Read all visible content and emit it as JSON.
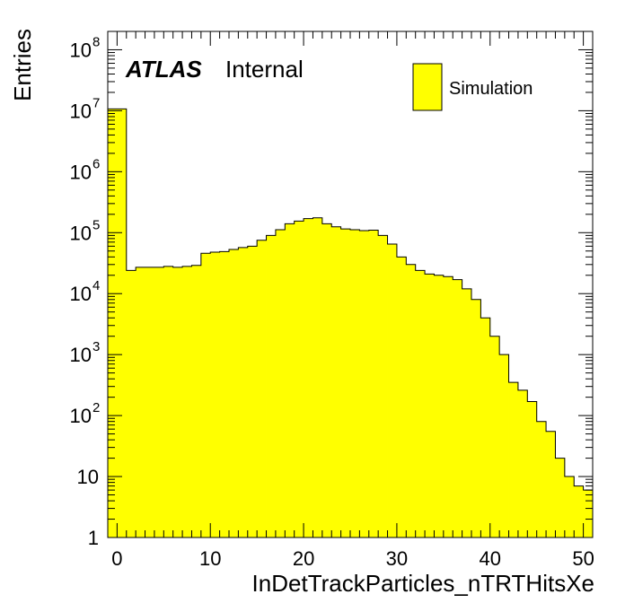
{
  "chart_data": {
    "type": "bar",
    "style": "histogram",
    "colors": {
      "fill": "#ffff00",
      "outline": "#000000"
    },
    "watermark": {
      "bold": "ATLAS",
      "normal": "Internal"
    },
    "legend": {
      "label": "Simulation",
      "position": "top-right"
    },
    "xlabel": "InDetTrackParticles_nTRTHitsXe",
    "ylabel": "Entries",
    "xlim": [
      -1,
      51
    ],
    "ylim": [
      1,
      200000000
    ],
    "yscale": "log",
    "grid": false,
    "x_ticks": [
      0,
      10,
      20,
      30,
      40,
      50
    ],
    "x_tick_labels": [
      "0",
      "10",
      "20",
      "30",
      "40",
      "50"
    ],
    "y_ticks": [
      {
        "value": 1,
        "base": "1",
        "exp": ""
      },
      {
        "value": 10,
        "base": "10",
        "exp": ""
      },
      {
        "value": 100,
        "base": "10",
        "exp": "2"
      },
      {
        "value": 1000,
        "base": "10",
        "exp": "3"
      },
      {
        "value": 10000,
        "base": "10",
        "exp": "4"
      },
      {
        "value": 100000,
        "base": "10",
        "exp": "5"
      },
      {
        "value": 1000000,
        "base": "10",
        "exp": "6"
      },
      {
        "value": 10000000,
        "base": "10",
        "exp": "7"
      },
      {
        "value": 100000000,
        "base": "10",
        "exp": "8"
      }
    ],
    "bin_edges": [
      -1,
      0,
      1,
      2,
      3,
      4,
      5,
      6,
      7,
      8,
      9,
      10,
      11,
      12,
      13,
      14,
      15,
      16,
      17,
      18,
      19,
      20,
      21,
      22,
      23,
      24,
      25,
      26,
      27,
      28,
      29,
      30,
      31,
      32,
      33,
      34,
      35,
      36,
      37,
      38,
      39,
      40,
      41,
      42,
      43,
      44,
      45,
      46,
      47,
      48,
      49,
      50,
      51
    ],
    "values": [
      10700000,
      10700000,
      24000,
      27000,
      27000,
      27000,
      28000,
      27000,
      28000,
      29000,
      46000,
      48000,
      49000,
      53000,
      57000,
      60000,
      75000,
      90000,
      112000,
      140000,
      155000,
      170000,
      175000,
      140000,
      125000,
      115000,
      112000,
      108000,
      110000,
      90000,
      65000,
      40000,
      30000,
      24000,
      21000,
      20000,
      19000,
      17000,
      12000,
      8000,
      4000,
      2000,
      1000,
      350,
      260,
      170,
      80,
      55,
      20,
      10,
      7,
      6
    ]
  }
}
